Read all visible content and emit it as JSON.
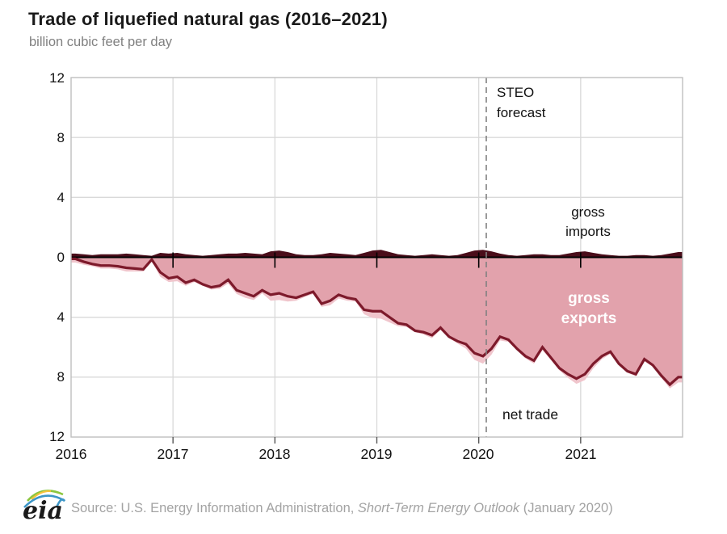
{
  "header": {
    "title": "Trade of liquefied natural gas (2016–2021)",
    "subtitle": "billion cubic feet per day"
  },
  "annotations": {
    "forecast_line1": "STEO",
    "forecast_line2": "forecast",
    "gross_imports_line1": "gross",
    "gross_imports_line2": "imports",
    "gross_exports_line1": "gross",
    "gross_exports_line2": "exports",
    "net_trade": "net trade"
  },
  "footer": {
    "logo_text": "eia",
    "source_prefix": "Source: U.S. Energy Information Administration, ",
    "source_italic": "Short-Term Energy Outlook",
    "source_suffix": " (January 2020)"
  },
  "colors": {
    "pink_area_net": "#e2a2ac",
    "pink_area_exports": "#f0c5cc",
    "net_trade_line": "#7d1a2b",
    "imports_area": "#4a0d1a",
    "zero_axis": "#000000",
    "gridline": "#d9d9d9",
    "plot_border": "#bfbfbf",
    "forecast_dash": "#808080",
    "title_text": "#1a1a1a",
    "subtitle_text": "#808080",
    "source_text": "#a3a3a3"
  },
  "chart_data": {
    "type": "area",
    "title": "Trade of liquefied natural gas (2016–2021)",
    "ylabel": "billion cubic feet per day",
    "xlabel": "",
    "x_monthly_start": "2016-01",
    "x_monthly_end": "2021-12",
    "x_tick_labels": [
      "2016",
      "2017",
      "2018",
      "2019",
      "2020",
      "2021"
    ],
    "y_tick_labels": [
      "12",
      "8",
      "4",
      "0",
      "4",
      "8",
      "12"
    ],
    "y_values_at_ticks": [
      12,
      8,
      4,
      0,
      -4,
      -8,
      -12
    ],
    "ylim": [
      -12,
      12
    ],
    "grid": true,
    "forecast_divider": "STEO forecast begins January 2020 (dashed vertical line)",
    "note": "exports shown as negative values below the zero line; net trade = gross imports - gross exports",
    "series": [
      {
        "name": "gross imports",
        "style": "dark filled area above zero",
        "values": [
          0.25,
          0.2,
          0.15,
          0.2,
          0.2,
          0.2,
          0.25,
          0.2,
          0.15,
          0.1,
          0.3,
          0.25,
          0.3,
          0.2,
          0.15,
          0.1,
          0.15,
          0.2,
          0.25,
          0.25,
          0.3,
          0.25,
          0.2,
          0.4,
          0.45,
          0.35,
          0.2,
          0.15,
          0.15,
          0.2,
          0.3,
          0.25,
          0.2,
          0.15,
          0.3,
          0.45,
          0.5,
          0.35,
          0.2,
          0.15,
          0.1,
          0.15,
          0.2,
          0.15,
          0.1,
          0.15,
          0.3,
          0.45,
          0.5,
          0.4,
          0.25,
          0.15,
          0.1,
          0.15,
          0.2,
          0.2,
          0.15,
          0.15,
          0.25,
          0.35,
          0.4,
          0.3,
          0.2,
          0.15,
          0.1,
          0.1,
          0.15,
          0.15,
          0.1,
          0.15,
          0.25,
          0.35
        ]
      },
      {
        "name": "gross exports",
        "style": "pink filled area below zero",
        "values": [
          -0.35,
          -0.5,
          -0.6,
          -0.75,
          -0.75,
          -0.8,
          -0.95,
          -0.95,
          -0.95,
          -0.25,
          -1.3,
          -1.65,
          -1.6,
          -1.9,
          -1.65,
          -1.9,
          -2.15,
          -2.1,
          -1.75,
          -2.45,
          -2.7,
          -2.85,
          -2.4,
          -2.9,
          -2.85,
          -2.95,
          -2.9,
          -2.65,
          -2.45,
          -3.3,
          -3.2,
          -2.75,
          -2.9,
          -2.95,
          -3.8,
          -4.05,
          -4.1,
          -4.35,
          -4.6,
          -4.65,
          -5.0,
          -5.15,
          -5.4,
          -4.85,
          -5.4,
          -5.75,
          -6.1,
          -6.85,
          -7.1,
          -6.5,
          -5.55,
          -5.65,
          -6.2,
          -6.75,
          -7.1,
          -6.2,
          -6.85,
          -7.55,
          -8.05,
          -8.45,
          -8.2,
          -7.4,
          -6.8,
          -6.45,
          -7.2,
          -7.7,
          -7.95,
          -6.95,
          -7.3,
          -8.05,
          -8.75,
          -8.35
        ]
      },
      {
        "name": "net trade",
        "style": "thick dark red line",
        "values": [
          -0.1,
          -0.3,
          -0.45,
          -0.55,
          -0.55,
          -0.6,
          -0.7,
          -0.75,
          -0.8,
          -0.15,
          -1.0,
          -1.4,
          -1.3,
          -1.7,
          -1.5,
          -1.8,
          -2.0,
          -1.9,
          -1.5,
          -2.2,
          -2.4,
          -2.6,
          -2.2,
          -2.5,
          -2.4,
          -2.6,
          -2.7,
          -2.5,
          -2.3,
          -3.1,
          -2.9,
          -2.5,
          -2.7,
          -2.8,
          -3.5,
          -3.6,
          -3.6,
          -4.0,
          -4.4,
          -4.5,
          -4.9,
          -5.0,
          -5.2,
          -4.7,
          -5.3,
          -5.6,
          -5.8,
          -6.4,
          -6.6,
          -6.1,
          -5.3,
          -5.5,
          -6.1,
          -6.6,
          -6.9,
          -6.0,
          -6.7,
          -7.4,
          -7.8,
          -8.1,
          -7.8,
          -7.1,
          -6.6,
          -6.3,
          -7.1,
          -7.6,
          -7.8,
          -6.8,
          -7.2,
          -7.9,
          -8.5,
          -8.0
        ]
      }
    ]
  }
}
